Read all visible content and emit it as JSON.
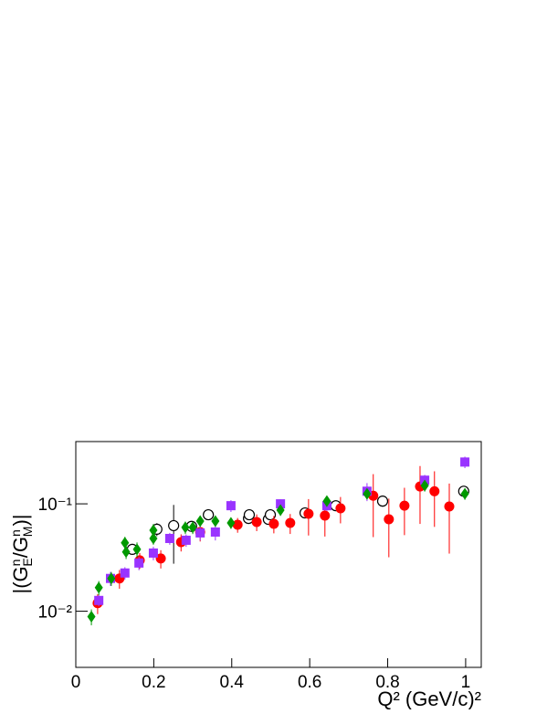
{
  "chart_data": {
    "type": "scatter",
    "xlabel": "Q² (GeV/c)²",
    "ylabel_parts": [
      "|(G",
      "n",
      "E",
      "/G",
      "n",
      "M",
      ")|"
    ],
    "xlim": [
      0,
      1.04
    ],
    "ylim": [
      0.003,
      0.38
    ],
    "log_y": true,
    "xticks": [
      {
        "value": 0,
        "label": "0"
      },
      0.2,
      0.4,
      0.6,
      0.8,
      1
    ],
    "yticks": [
      {
        "value": 0.01,
        "label": "10⁻²"
      },
      {
        "value": 0.1,
        "label": "10⁻¹"
      }
    ],
    "series": [
      {
        "marker": "circle-open",
        "color": "#000000",
        "x": [
          0.145,
          0.208,
          0.251,
          0.297,
          0.34,
          0.443,
          0.445,
          0.494,
          0.499,
          0.588,
          0.667,
          0.787,
          0.995
        ],
        "values": [
          0.0377,
          0.058,
          0.0627,
          0.0617,
          0.0791,
          0.0731,
          0.0791,
          0.0717,
          0.0791,
          0.0823,
          0.096,
          0.106,
          0.131
        ],
        "errors": [
          0.004,
          0.008,
          0.035,
          0.006,
          0.006,
          0.008,
          0.005,
          0.006,
          0.005,
          0.006,
          0.008,
          0.012,
          0.012
        ]
      },
      {
        "marker": "circle",
        "color": "#ff0000",
        "x": [
          0.056,
          0.112,
          0.164,
          0.218,
          0.27,
          0.319,
          0.415,
          0.464,
          0.508,
          0.55,
          0.597,
          0.639,
          0.679,
          0.763,
          0.803,
          0.843,
          0.883,
          0.92,
          0.958
        ],
        "values": [
          0.0119,
          0.0202,
          0.0298,
          0.031,
          0.044,
          0.0546,
          0.0638,
          0.0677,
          0.0651,
          0.0664,
          0.0807,
          0.0776,
          0.0908,
          0.119,
          0.0718,
          0.0961,
          0.145,
          0.131,
          0.0944
        ],
        "errors": [
          0.0025,
          0.004,
          0.005,
          0.006,
          0.008,
          0.01,
          0.01,
          0.012,
          0.012,
          0.014,
          0.03,
          0.028,
          0.025,
          0.07,
          0.04,
          0.045,
          0.08,
          0.07,
          0.06
        ]
      },
      {
        "marker": "square",
        "color": "#9933ff",
        "x": [
          0.059,
          0.089,
          0.126,
          0.162,
          0.199,
          0.241,
          0.283,
          0.319,
          0.358,
          0.398,
          0.525,
          0.644,
          0.747,
          0.895,
          0.998
        ],
        "values": [
          0.0126,
          0.0202,
          0.0227,
          0.0281,
          0.0348,
          0.0476,
          0.0458,
          0.0536,
          0.0546,
          0.0961,
          0.1,
          0.096,
          0.131,
          0.166,
          0.245
        ],
        "errors": [
          0.0015,
          0.003,
          0.003,
          0.004,
          0.005,
          0.006,
          0.006,
          0.008,
          0.009,
          0.012,
          0.01,
          0.01,
          0.025,
          0.02,
          0.03
        ]
      },
      {
        "marker": "diamond",
        "color": "#009900",
        "x": [
          0.04,
          0.059,
          0.091,
          0.126,
          0.129,
          0.157,
          0.199,
          0.199,
          0.281,
          0.3,
          0.319,
          0.358,
          0.398,
          0.525,
          0.644,
          0.747,
          0.895,
          0.998
        ],
        "values": [
          0.0089,
          0.0166,
          0.0202,
          0.0433,
          0.0356,
          0.0377,
          0.0476,
          0.0568,
          0.0603,
          0.0603,
          0.069,
          0.069,
          0.0664,
          0.0873,
          0.106,
          0.124,
          0.148,
          0.124
        ],
        "errors": [
          0.0015,
          0.0025,
          0.003,
          0.006,
          0.005,
          0.006,
          0.006,
          0.008,
          0.008,
          0.008,
          0.008,
          0.008,
          0.008,
          0.01,
          0.012,
          0.014,
          0.018,
          0.015
        ]
      }
    ]
  }
}
